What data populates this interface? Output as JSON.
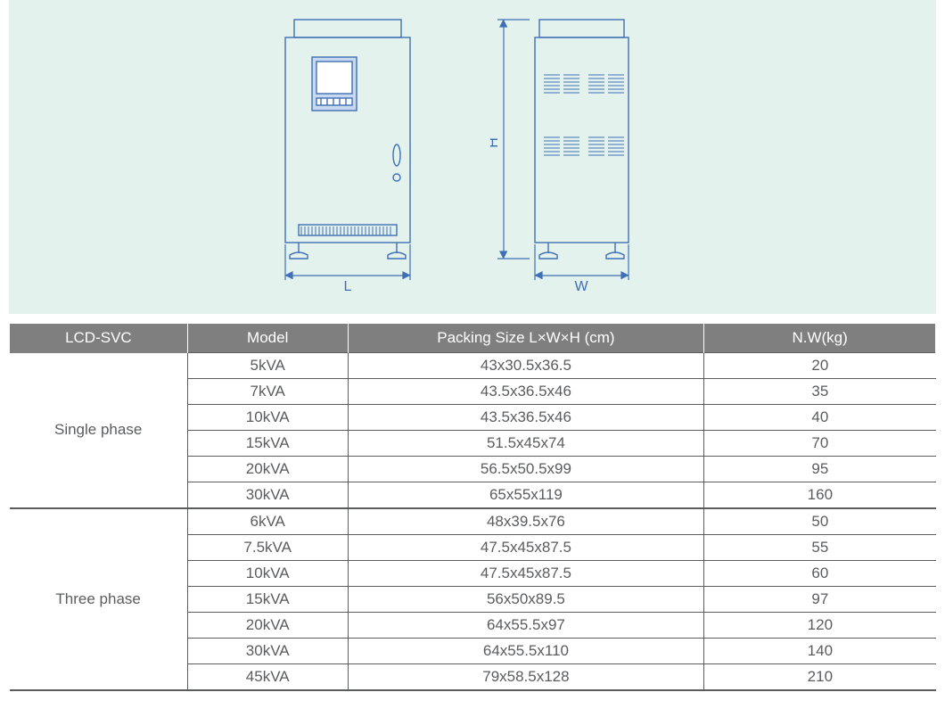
{
  "diagram": {
    "stroke": "#3f6fb5",
    "fill_bg": "#e4f2ee",
    "panel_fill": "#c7d9f0",
    "label_L": "L",
    "label_W": "W",
    "label_H": "H"
  },
  "table": {
    "header_bg": "#7f7f80",
    "header_fg": "#ffffff",
    "cell_fg": "#5b5c5e",
    "columns": [
      "LCD-SVC",
      "Model",
      "Packing Size L×W×H (cm)",
      "N.W(kg)"
    ],
    "groups": [
      {
        "name": "Single phase",
        "rows": [
          {
            "model": "5kVA",
            "size": "43x30.5x36.5",
            "nw": "20"
          },
          {
            "model": "7kVA",
            "size": "43.5x36.5x46",
            "nw": "35"
          },
          {
            "model": "10kVA",
            "size": "43.5x36.5x46",
            "nw": "40"
          },
          {
            "model": "15kVA",
            "size": "51.5x45x74",
            "nw": "70"
          },
          {
            "model": "20kVA",
            "size": "56.5x50.5x99",
            "nw": "95"
          },
          {
            "model": "30kVA",
            "size": "65x55x119",
            "nw": "160"
          }
        ]
      },
      {
        "name": "Three phase",
        "rows": [
          {
            "model": "6kVA",
            "size": "48x39.5x76",
            "nw": "50"
          },
          {
            "model": "7.5kVA",
            "size": "47.5x45x87.5",
            "nw": "55"
          },
          {
            "model": "10kVA",
            "size": "47.5x45x87.5",
            "nw": "60"
          },
          {
            "model": "15kVA",
            "size": "56x50x89.5",
            "nw": "97"
          },
          {
            "model": "20kVA",
            "size": "64x55.5x97",
            "nw": "120"
          },
          {
            "model": "30kVA",
            "size": "64x55.5x110",
            "nw": "140"
          },
          {
            "model": "45kVA",
            "size": "79x58.5x128",
            "nw": "210"
          }
        ]
      }
    ]
  }
}
